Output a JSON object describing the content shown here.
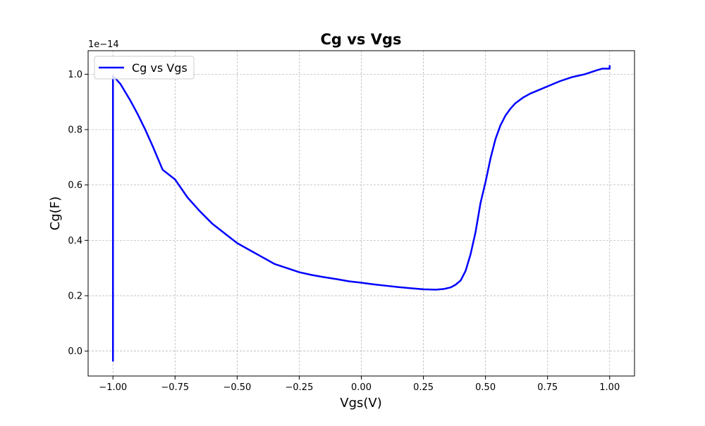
{
  "chart_data": {
    "type": "line",
    "title": "Cg vs Vgs",
    "xlabel": "Vgs(V)",
    "ylabel": "Cg(F)",
    "y_offset_label": "1e−14",
    "xlim": [
      -1.1,
      1.1
    ],
    "ylim": [
      -0.09,
      1.085
    ],
    "x_ticks": [
      -1.0,
      -0.75,
      -0.5,
      -0.25,
      0.0,
      0.25,
      0.5,
      0.75,
      1.0
    ],
    "x_tick_labels": [
      "−1.00",
      "−0.75",
      "−0.50",
      "−0.25",
      "0.00",
      "0.25",
      "0.50",
      "0.75",
      "1.00"
    ],
    "y_ticks": [
      0.0,
      0.2,
      0.4,
      0.6,
      0.8,
      1.0
    ],
    "y_tick_labels": [
      "0.0",
      "0.2",
      "0.4",
      "0.6",
      "0.8",
      "1.0"
    ],
    "grid": true,
    "legend_position": "upper-left",
    "series": [
      {
        "name": "Cg vs Vgs",
        "color": "#0000ff",
        "x": [
          -1.0,
          -1.0,
          -1.0,
          -0.99,
          -0.97,
          -0.95,
          -0.93,
          -0.9,
          -0.87,
          -0.84,
          -0.8,
          -0.75,
          -0.7,
          -0.65,
          -0.6,
          -0.55,
          -0.5,
          -0.45,
          -0.4,
          -0.35,
          -0.3,
          -0.25,
          -0.2,
          -0.15,
          -0.1,
          -0.05,
          0.0,
          0.05,
          0.1,
          0.15,
          0.2,
          0.25,
          0.3,
          0.33,
          0.36,
          0.38,
          0.4,
          0.42,
          0.44,
          0.46,
          0.48,
          0.5,
          0.52,
          0.54,
          0.56,
          0.58,
          0.6,
          0.62,
          0.65,
          0.68,
          0.72,
          0.76,
          0.8,
          0.85,
          0.9,
          0.95,
          0.97,
          1.0,
          1.0
        ],
        "y": [
          -0.035,
          0.995,
          0.99,
          0.985,
          0.965,
          0.935,
          0.905,
          0.855,
          0.8,
          0.74,
          0.655,
          0.62,
          0.555,
          0.505,
          0.46,
          0.425,
          0.39,
          0.365,
          0.34,
          0.315,
          0.3,
          0.285,
          0.275,
          0.267,
          0.26,
          0.252,
          0.247,
          0.241,
          0.236,
          0.231,
          0.227,
          0.223,
          0.222,
          0.224,
          0.23,
          0.24,
          0.255,
          0.29,
          0.35,
          0.43,
          0.535,
          0.61,
          0.695,
          0.765,
          0.815,
          0.85,
          0.875,
          0.895,
          0.915,
          0.93,
          0.945,
          0.96,
          0.975,
          0.99,
          1.0,
          1.015,
          1.02,
          1.02,
          1.03
        ]
      }
    ]
  }
}
